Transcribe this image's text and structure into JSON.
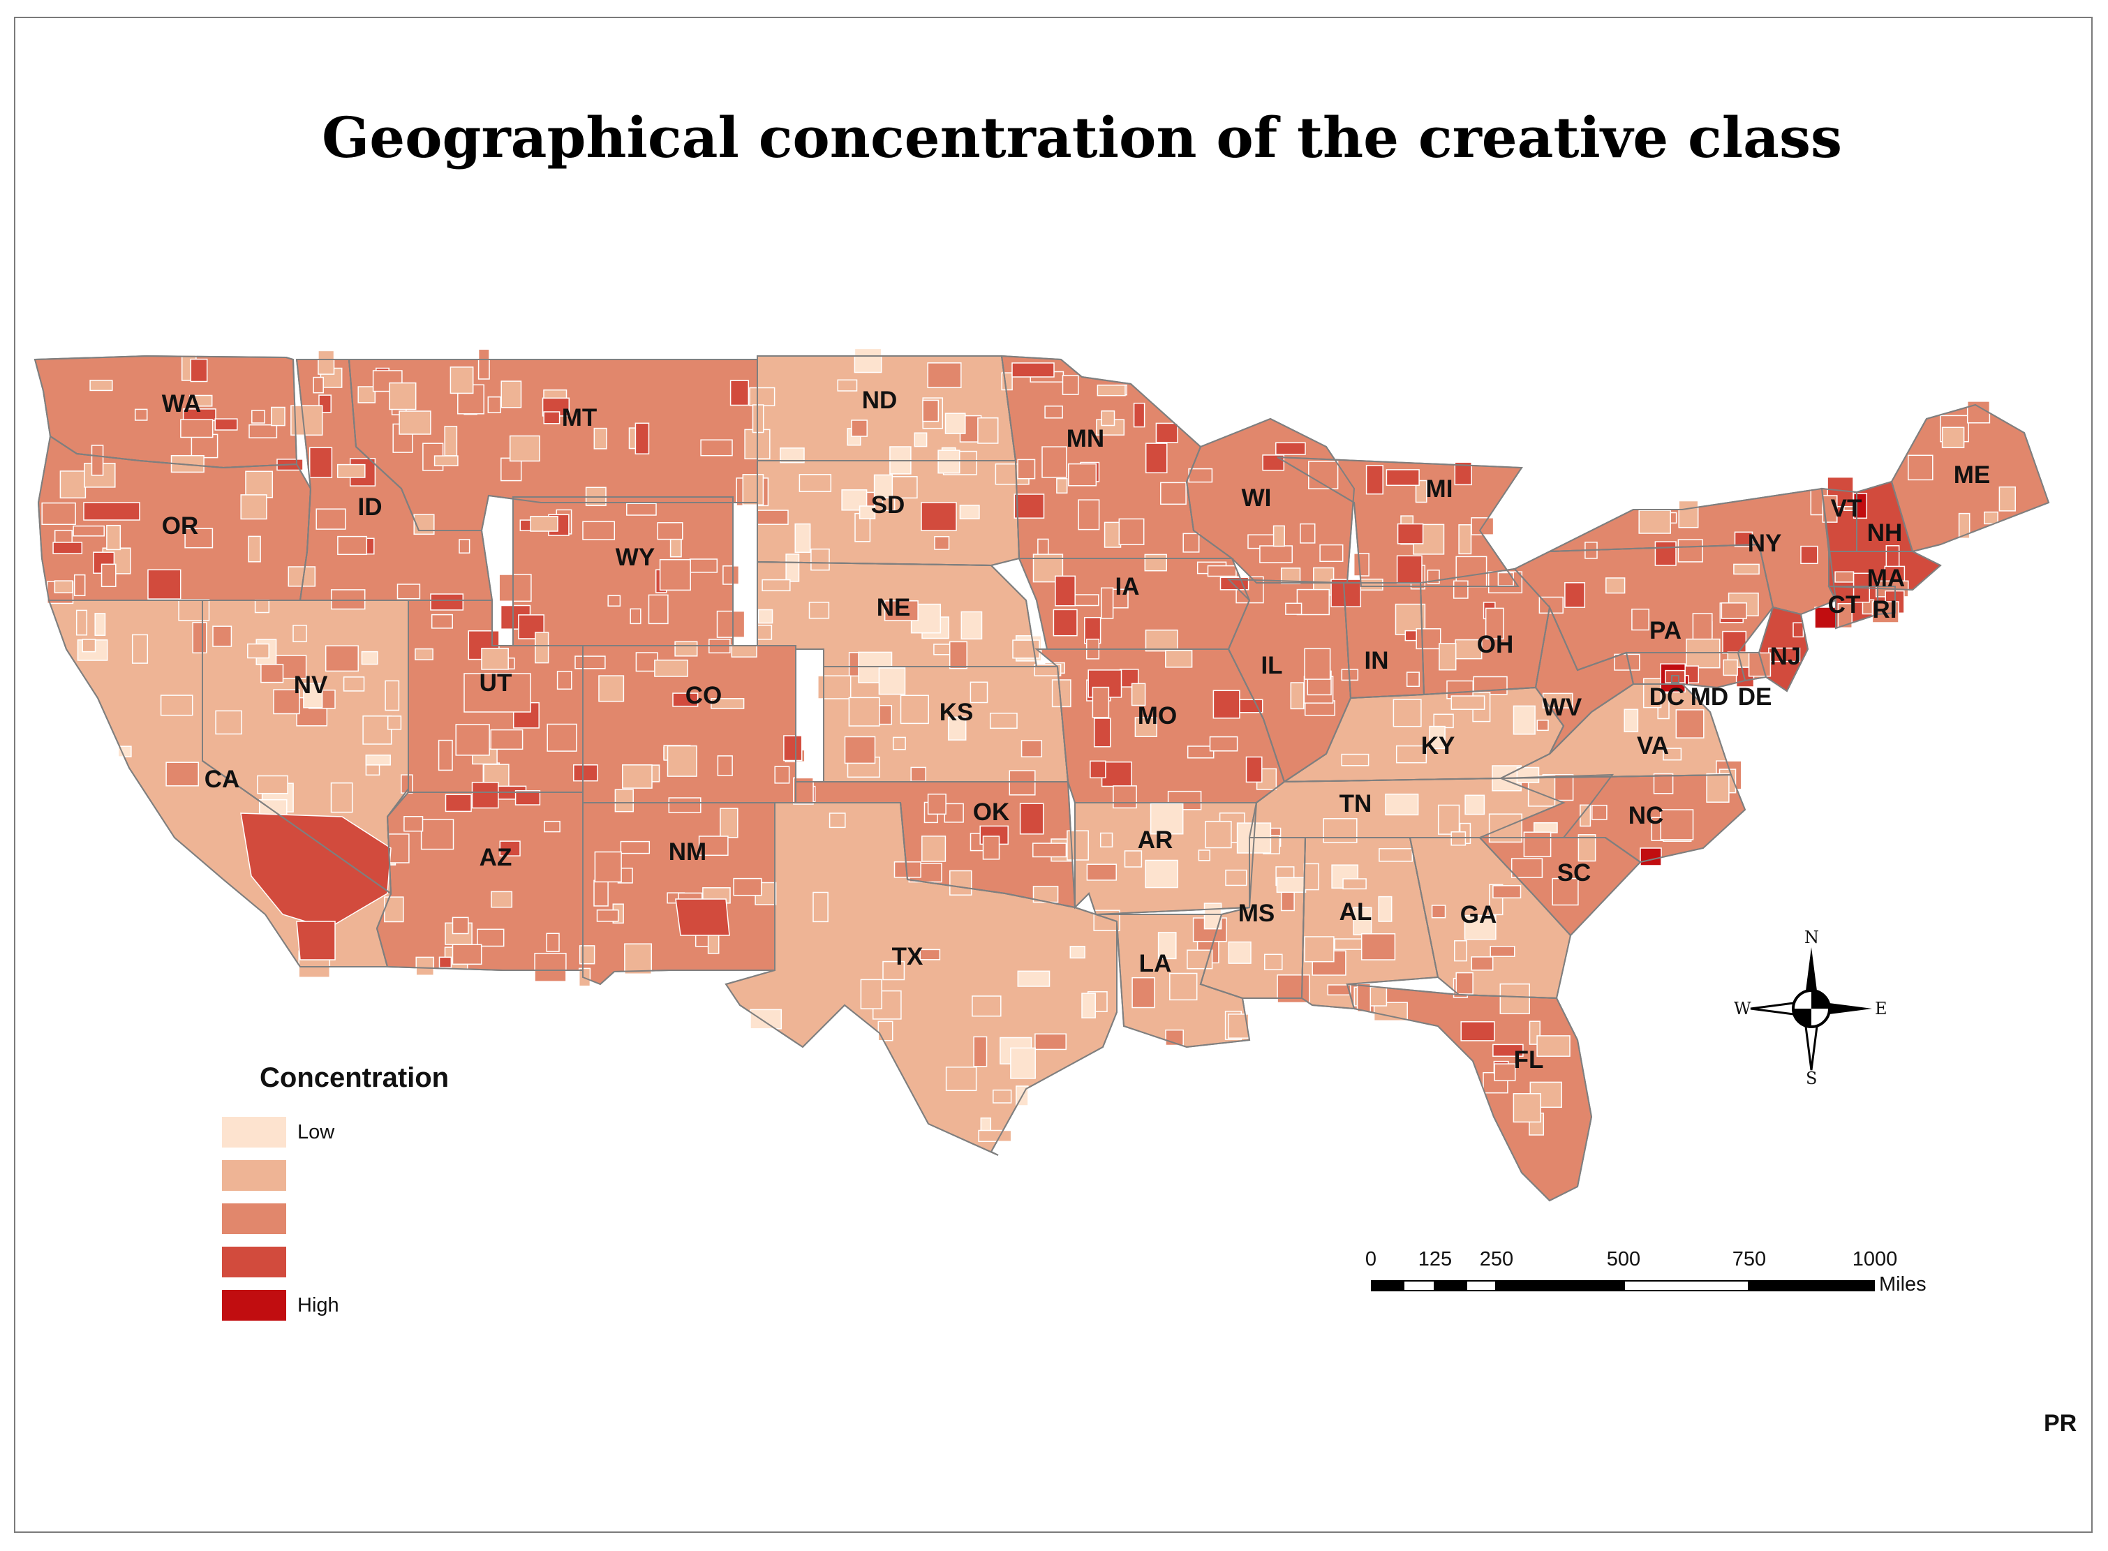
{
  "title": "Geographical concentration of the creative class",
  "colors": {
    "background": "#ffffff",
    "border": "#7a7a7a",
    "state_line": "#7f7f7f",
    "county_line": "#ffffff"
  },
  "legend": {
    "title": "Concentration",
    "classes": [
      {
        "label": "Low",
        "color": "#fde3cf"
      },
      {
        "label": "",
        "color": "#eeb495"
      },
      {
        "label": "",
        "color": "#e1876c"
      },
      {
        "label": "",
        "color": "#d24b3d"
      },
      {
        "label": "High",
        "color": "#c10d10"
      }
    ]
  },
  "scale_bar": {
    "ticks": [
      "0",
      "125",
      "250",
      "500",
      "750",
      "1000"
    ],
    "unit": "Miles"
  },
  "compass": {
    "n": "N",
    "s": "S",
    "e": "E",
    "w": "W"
  },
  "states": [
    {
      "abbr": "WA",
      "level": 2
    },
    {
      "abbr": "OR",
      "level": 2
    },
    {
      "abbr": "CA",
      "level": 1
    },
    {
      "abbr": "NV",
      "level": 1
    },
    {
      "abbr": "ID",
      "level": 2
    },
    {
      "abbr": "MT",
      "level": 2
    },
    {
      "abbr": "WY",
      "level": 2
    },
    {
      "abbr": "UT",
      "level": 2
    },
    {
      "abbr": "CO",
      "level": 2
    },
    {
      "abbr": "AZ",
      "level": 2
    },
    {
      "abbr": "NM",
      "level": 2
    },
    {
      "abbr": "ND",
      "level": 1
    },
    {
      "abbr": "SD",
      "level": 1
    },
    {
      "abbr": "NE",
      "level": 1
    },
    {
      "abbr": "KS",
      "level": 1
    },
    {
      "abbr": "OK",
      "level": 2
    },
    {
      "abbr": "TX",
      "level": 1
    },
    {
      "abbr": "MN",
      "level": 2
    },
    {
      "abbr": "IA",
      "level": 2
    },
    {
      "abbr": "MO",
      "level": 2
    },
    {
      "abbr": "AR",
      "level": 1
    },
    {
      "abbr": "LA",
      "level": 1
    },
    {
      "abbr": "WI",
      "level": 2
    },
    {
      "abbr": "IL",
      "level": 2
    },
    {
      "abbr": "MI",
      "level": 2
    },
    {
      "abbr": "IN",
      "level": 2
    },
    {
      "abbr": "OH",
      "level": 2
    },
    {
      "abbr": "KY",
      "level": 1
    },
    {
      "abbr": "TN",
      "level": 1
    },
    {
      "abbr": "MS",
      "level": 1
    },
    {
      "abbr": "AL",
      "level": 1
    },
    {
      "abbr": "GA",
      "level": 1
    },
    {
      "abbr": "FL",
      "level": 2
    },
    {
      "abbr": "SC",
      "level": 2
    },
    {
      "abbr": "NC",
      "level": 2
    },
    {
      "abbr": "VA",
      "level": 1
    },
    {
      "abbr": "WV",
      "level": 2
    },
    {
      "abbr": "PA",
      "level": 2
    },
    {
      "abbr": "NY",
      "level": 2
    },
    {
      "abbr": "VT",
      "level": 3
    },
    {
      "abbr": "NH",
      "level": 3
    },
    {
      "abbr": "ME",
      "level": 2
    },
    {
      "abbr": "MA",
      "level": 3
    },
    {
      "abbr": "CT",
      "level": 3
    },
    {
      "abbr": "RI",
      "level": 3
    },
    {
      "abbr": "NJ",
      "level": 3
    },
    {
      "abbr": "DE",
      "level": 2
    },
    {
      "abbr": "MD",
      "level": 2
    },
    {
      "abbr": "DC",
      "level": 4
    }
  ],
  "corner_logo": "PR"
}
